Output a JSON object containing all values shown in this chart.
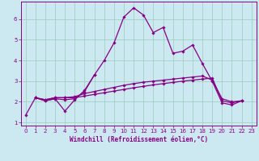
{
  "xlabel": "Windchill (Refroidissement éolien,°C)",
  "bg_color": "#cce8f0",
  "grid_color": "#99ccbb",
  "line_color": "#880088",
  "spine_color": "#880088",
  "xlim": [
    -0.5,
    23.5
  ],
  "ylim": [
    0.85,
    6.85
  ],
  "yticks": [
    1,
    2,
    3,
    4,
    5,
    6
  ],
  "xticks": [
    0,
    1,
    2,
    3,
    4,
    5,
    6,
    7,
    8,
    9,
    10,
    11,
    12,
    13,
    14,
    15,
    16,
    17,
    18,
    19,
    20,
    21,
    22,
    23
  ],
  "line1_x": [
    0,
    1,
    2,
    3,
    4,
    5,
    6,
    7,
    8,
    9,
    10,
    11,
    12,
    13,
    14,
    15,
    16,
    17,
    18,
    19,
    20,
    21,
    22
  ],
  "line1_y": [
    1.35,
    2.2,
    2.05,
    2.15,
    1.55,
    2.1,
    2.55,
    3.3,
    4.0,
    4.85,
    6.1,
    6.55,
    6.2,
    5.35,
    5.6,
    4.35,
    4.45,
    4.75,
    3.85,
    3.0,
    1.95,
    1.85,
    2.05
  ],
  "line2_x": [
    1,
    2,
    3,
    4,
    5,
    6,
    7
  ],
  "line2_y": [
    2.2,
    2.05,
    2.15,
    2.1,
    2.15,
    2.5,
    3.3
  ],
  "line3_x": [
    1,
    2,
    3,
    4,
    5,
    6,
    7,
    8,
    9,
    10,
    11,
    12,
    13,
    14,
    15,
    16,
    17,
    18,
    19,
    20,
    21,
    22
  ],
  "line3_y": [
    2.2,
    2.1,
    2.2,
    2.2,
    2.25,
    2.4,
    2.5,
    2.6,
    2.7,
    2.8,
    2.88,
    2.95,
    3.0,
    3.05,
    3.1,
    3.15,
    3.2,
    3.25,
    3.05,
    2.15,
    2.0,
    2.05
  ],
  "line4_x": [
    1,
    2,
    3,
    4,
    5,
    6,
    7,
    8,
    9,
    10,
    11,
    12,
    13,
    14,
    15,
    16,
    17,
    18,
    19,
    20,
    21,
    22
  ],
  "line4_y": [
    2.2,
    2.1,
    2.2,
    2.2,
    2.2,
    2.28,
    2.36,
    2.44,
    2.52,
    2.6,
    2.68,
    2.75,
    2.82,
    2.88,
    2.94,
    3.0,
    3.05,
    3.1,
    3.15,
    2.05,
    1.95,
    2.05
  ],
  "marker_style": "D",
  "marker_size": 1.8,
  "line_width": 0.9,
  "tick_fontsize": 5.0,
  "xlabel_fontsize": 5.5
}
